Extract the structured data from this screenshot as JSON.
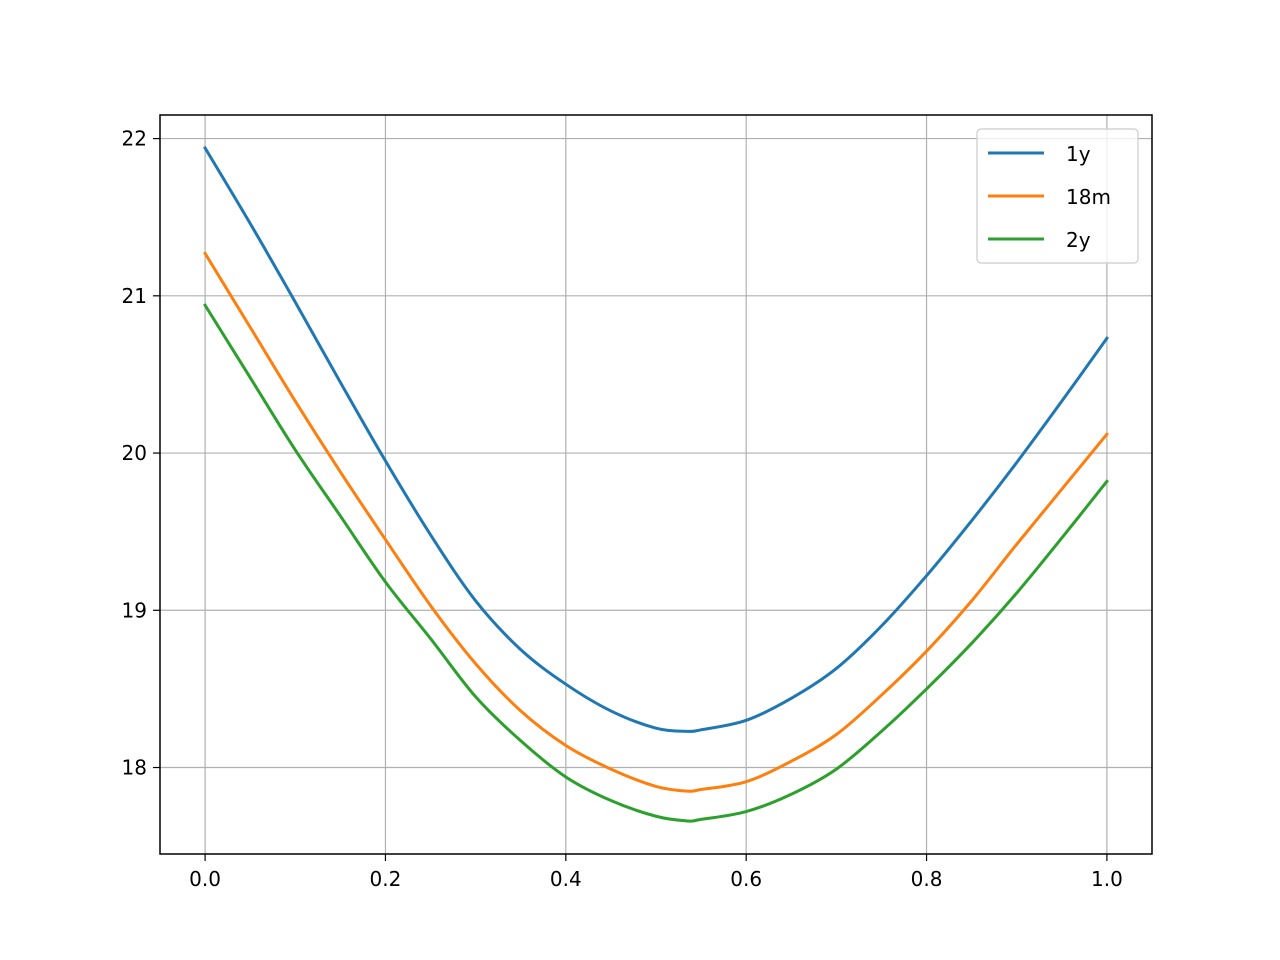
{
  "chart_data": {
    "type": "line",
    "title": "",
    "xlabel": "",
    "ylabel": "",
    "xlim": [
      -0.05,
      1.05
    ],
    "ylim": [
      17.45,
      22.15
    ],
    "grid": true,
    "legend_position": "top-right",
    "x_ticks": [
      {
        "value": 0.0,
        "label": "0.0"
      },
      {
        "value": 0.2,
        "label": "0.2"
      },
      {
        "value": 0.4,
        "label": "0.4"
      },
      {
        "value": 0.6,
        "label": "0.6"
      },
      {
        "value": 0.8,
        "label": "0.8"
      },
      {
        "value": 1.0,
        "label": "1.0"
      }
    ],
    "y_ticks": [
      {
        "value": 18,
        "label": "18"
      },
      {
        "value": 19,
        "label": "19"
      },
      {
        "value": 20,
        "label": "20"
      },
      {
        "value": 21,
        "label": "21"
      },
      {
        "value": 22,
        "label": "22"
      }
    ],
    "x": [
      0.0,
      0.05,
      0.1,
      0.15,
      0.2,
      0.25,
      0.3,
      0.35,
      0.4,
      0.45,
      0.5,
      0.535,
      0.55,
      0.6,
      0.65,
      0.7,
      0.75,
      0.8,
      0.85,
      0.9,
      0.95,
      1.0
    ],
    "series": [
      {
        "name": "1y",
        "color": "#1f77b4",
        "values": [
          21.94,
          21.46,
          20.96,
          20.45,
          19.95,
          19.48,
          19.06,
          18.75,
          18.53,
          18.36,
          18.25,
          18.23,
          18.24,
          18.3,
          18.44,
          18.63,
          18.9,
          19.22,
          19.57,
          19.94,
          20.33,
          20.73
        ]
      },
      {
        "name": "18m",
        "color": "#ff7f0e",
        "values": [
          21.27,
          20.8,
          20.33,
          19.88,
          19.45,
          19.03,
          18.66,
          18.36,
          18.14,
          17.99,
          17.88,
          17.85,
          17.86,
          17.91,
          18.04,
          18.21,
          18.46,
          18.74,
          19.06,
          19.42,
          19.77,
          20.12
        ]
      },
      {
        "name": "2y",
        "color": "#2ca02c",
        "values": [
          20.94,
          20.48,
          20.02,
          19.6,
          19.18,
          18.82,
          18.45,
          18.17,
          17.94,
          17.79,
          17.69,
          17.66,
          17.67,
          17.72,
          17.83,
          17.99,
          18.23,
          18.5,
          18.79,
          19.11,
          19.46,
          19.82
        ]
      }
    ]
  }
}
